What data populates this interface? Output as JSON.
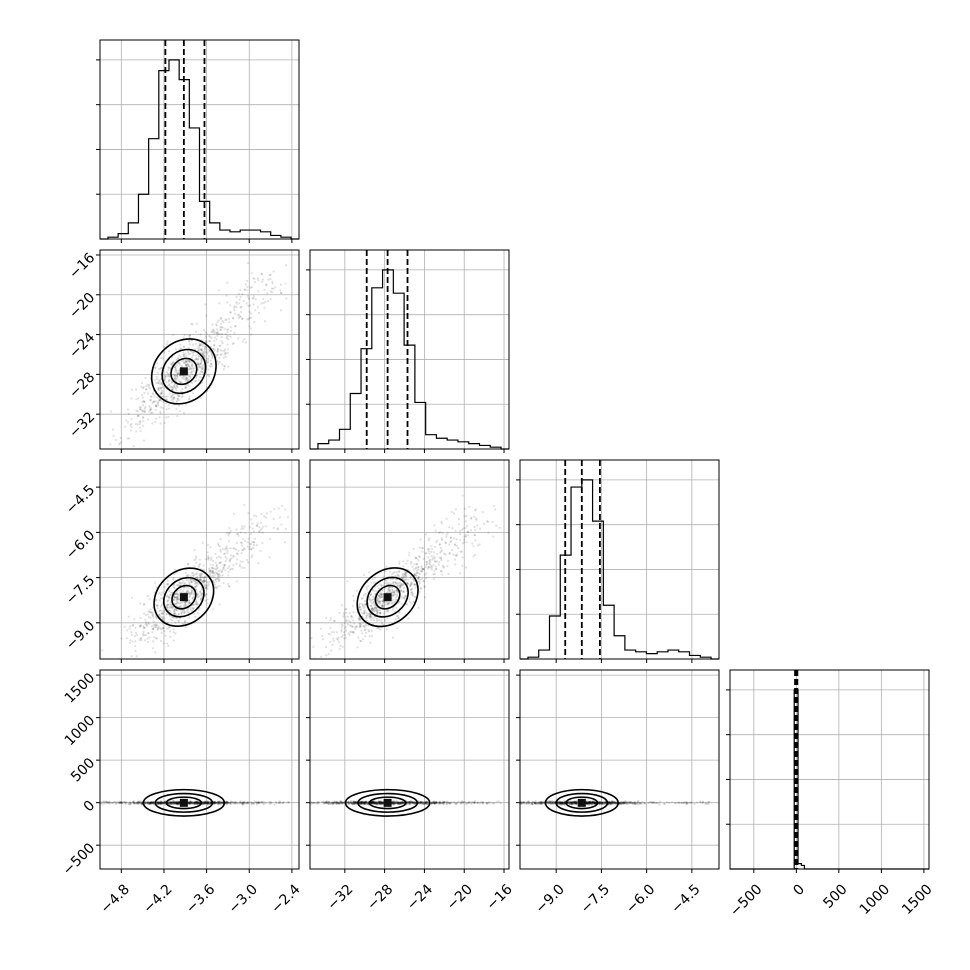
{
  "chart_data": {
    "type": "corner",
    "parameters": [
      {
        "ticks": [
          -4.8,
          -4.2,
          -3.6,
          -3.0,
          -2.4
        ],
        "tick_labels": [
          "−4.8",
          "−4.2",
          "−3.6",
          "−3.0",
          "−2.4"
        ],
        "range": [
          -5.1,
          -2.3
        ],
        "quantiles": [
          -4.18,
          -3.92,
          -3.63
        ],
        "median": -3.92,
        "hist": [
          0.01,
          0.03,
          0.09,
          0.25,
          0.56,
          0.94,
          1.0,
          0.89,
          0.62,
          0.21,
          0.09,
          0.05,
          0.04,
          0.05,
          0.05,
          0.04,
          0.02,
          0.01
        ]
      },
      {
        "ticks": [
          -32,
          -28,
          -24,
          -20,
          -16
        ],
        "tick_labels": [
          "−32",
          "−28",
          "−24",
          "−20",
          "−16"
        ],
        "range": [
          -35.5,
          -15.5
        ],
        "quantiles": [
          -29.8,
          -27.7,
          -25.7
        ],
        "median": -27.7,
        "hist": [
          0.03,
          0.05,
          0.11,
          0.31,
          0.56,
          0.9,
          1.0,
          0.87,
          0.58,
          0.26,
          0.08,
          0.06,
          0.05,
          0.04,
          0.03,
          0.02,
          0.01
        ]
      },
      {
        "ticks": [
          -9.0,
          -7.5,
          -6.0,
          -4.5
        ],
        "tick_labels": [
          "−9.0",
          "−7.5",
          "−6.0",
          "−4.5"
        ],
        "range": [
          -10.2,
          -3.6
        ],
        "quantiles": [
          -8.7,
          -8.15,
          -7.55
        ],
        "median": -8.15,
        "hist": [
          0.01,
          0.05,
          0.24,
          0.58,
          0.96,
          1.0,
          0.77,
          0.3,
          0.13,
          0.05,
          0.04,
          0.03,
          0.04,
          0.05,
          0.04,
          0.02,
          0.01
        ]
      },
      {
        "ticks": [
          -500,
          0,
          500,
          1000,
          1500
        ],
        "tick_labels": [
          "−500",
          "0",
          "500",
          "1000",
          "1500"
        ],
        "range": [
          -780,
          1560
        ],
        "quantiles": [
          -15,
          -2,
          12
        ],
        "median": -2,
        "hist_bins": [
          -60,
          -25,
          20,
          60,
          95
        ],
        "hist": [
          0.0,
          1.0,
          0.03,
          0.02
        ]
      }
    ],
    "correlations": [
      {
        "row": 1,
        "col": 0,
        "slope": 6.6
      },
      {
        "row": 2,
        "col": 0,
        "slope": 2.0
      },
      {
        "row": 2,
        "col": 1,
        "slope": 0.3
      },
      {
        "row": 3,
        "col": 0,
        "slope": 0.0
      },
      {
        "row": 3,
        "col": 1,
        "slope": 0.0
      },
      {
        "row": 3,
        "col": 2,
        "slope": 0.0
      }
    ],
    "contour_levels": 3,
    "grid": true,
    "xlabel": "",
    "ylabel": "",
    "title": ""
  }
}
